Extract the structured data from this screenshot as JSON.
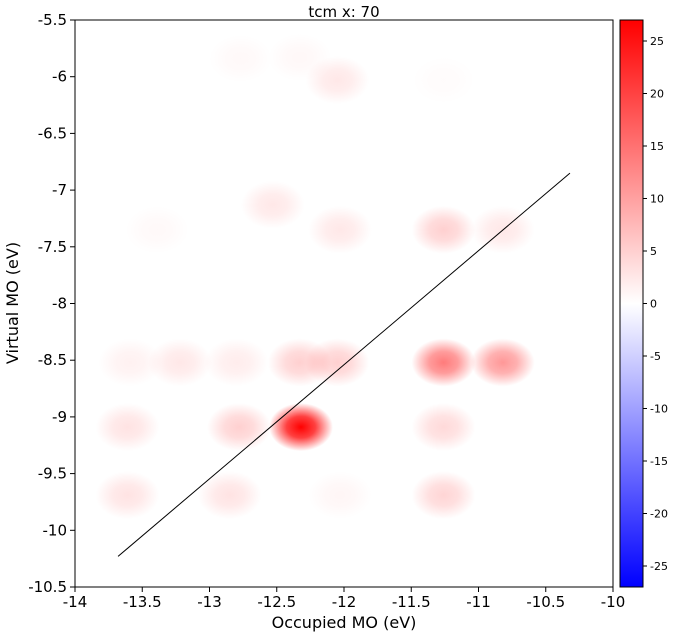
{
  "chart_data": {
    "type": "heatmap",
    "title": "tcm x: 70",
    "xlabel": "Occupied MO (eV)",
    "ylabel": "Virtual MO (eV)",
    "xlim": [
      -14,
      -10
    ],
    "ylim": [
      -10.5,
      -5.5
    ],
    "xticks": [
      -14,
      -13.5,
      -13,
      -12.5,
      -12,
      -11.5,
      -11,
      -10.5,
      -10
    ],
    "yticks": [
      -5.5,
      -6,
      -6.5,
      -7,
      -7.5,
      -8,
      -8.5,
      -9,
      -9.5,
      -10,
      -10.5
    ],
    "colorbar": {
      "range": [
        -27,
        27
      ],
      "ticks": [
        25,
        20,
        15,
        10,
        5,
        0,
        -5,
        -10,
        -15,
        -20,
        -25
      ],
      "colormap": "bwr",
      "low_color": "#0000ff",
      "mid_color": "#ffffff",
      "high_color": "#ff0000"
    },
    "points": [
      {
        "x": -12.32,
        "y": -9.09,
        "v": 27
      },
      {
        "x": -11.26,
        "y": -8.52,
        "v": 14
      },
      {
        "x": -10.82,
        "y": -8.52,
        "v": 11
      },
      {
        "x": -12.05,
        "y": -8.52,
        "v": 5
      },
      {
        "x": -12.33,
        "y": -8.52,
        "v": 5
      },
      {
        "x": -12.8,
        "y": -8.52,
        "v": 2
      },
      {
        "x": -13.22,
        "y": -8.52,
        "v": 2.5
      },
      {
        "x": -13.59,
        "y": -8.52,
        "v": 1.5
      },
      {
        "x": -13.61,
        "y": -9.09,
        "v": 3
      },
      {
        "x": -12.78,
        "y": -9.09,
        "v": 5
      },
      {
        "x": -11.26,
        "y": -9.09,
        "v": 4
      },
      {
        "x": -13.61,
        "y": -9.69,
        "v": 3
      },
      {
        "x": -12.85,
        "y": -9.69,
        "v": 3
      },
      {
        "x": -12.03,
        "y": -9.69,
        "v": 1
      },
      {
        "x": -11.26,
        "y": -9.69,
        "v": 4.5
      },
      {
        "x": -11.26,
        "y": -7.35,
        "v": 5
      },
      {
        "x": -10.82,
        "y": -7.35,
        "v": 2.5
      },
      {
        "x": -12.03,
        "y": -7.35,
        "v": 2.5
      },
      {
        "x": -13.39,
        "y": -7.35,
        "v": 0.7
      },
      {
        "x": -12.53,
        "y": -7.13,
        "v": 2.5
      },
      {
        "x": -12.05,
        "y": -6.03,
        "v": 2.5
      },
      {
        "x": -12.77,
        "y": -5.84,
        "v": 0.7
      },
      {
        "x": -12.33,
        "y": -5.83,
        "v": 0.8
      },
      {
        "x": -11.26,
        "y": -6.03,
        "v": 0.4
      }
    ],
    "line": [
      [
        -13.68,
        -10.23
      ],
      [
        -10.32,
        -6.85
      ]
    ]
  }
}
